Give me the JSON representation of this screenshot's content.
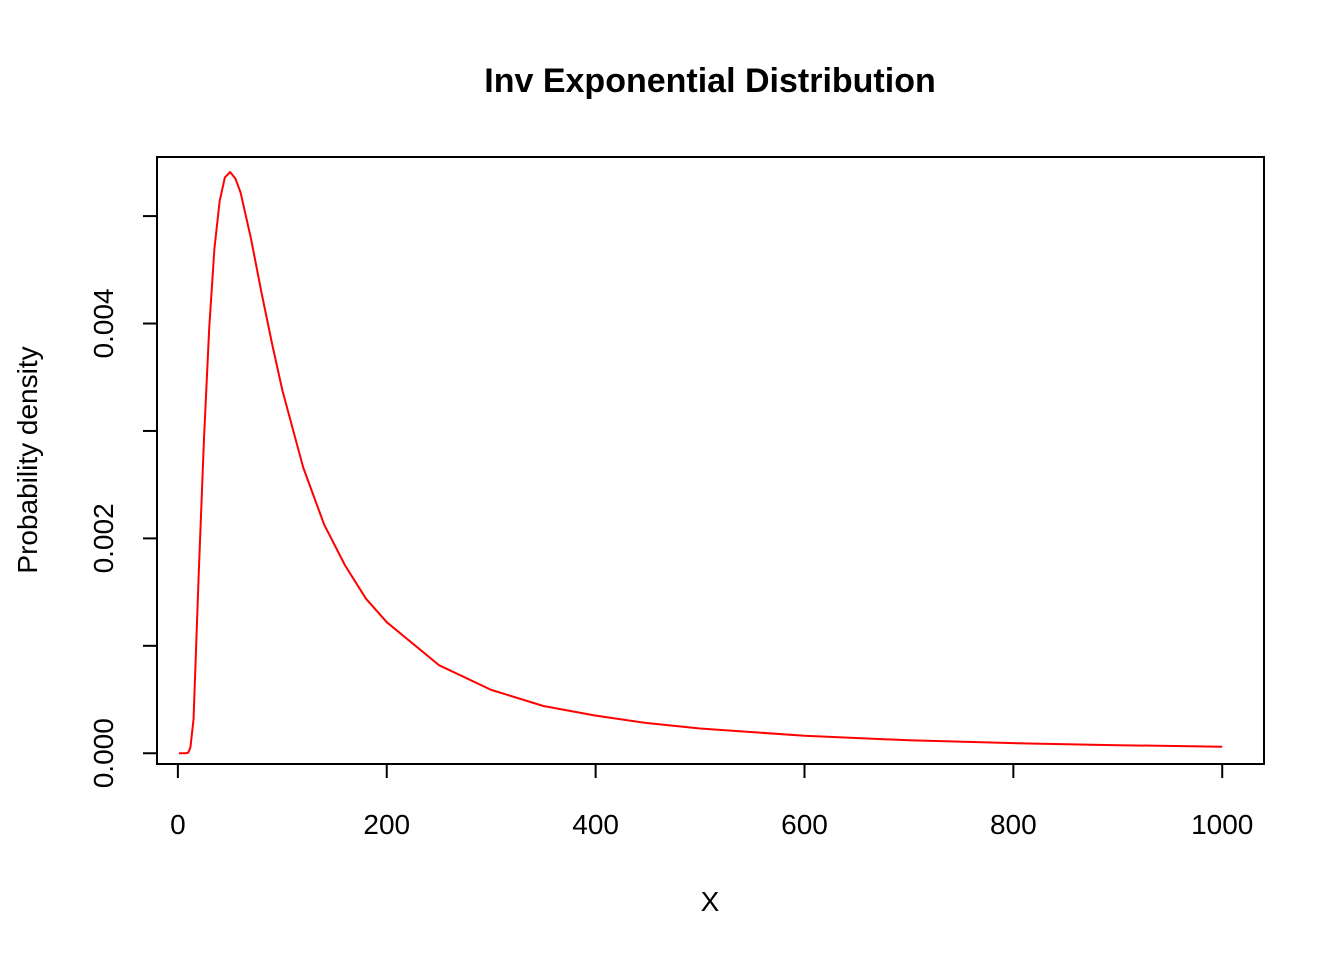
{
  "chart_data": {
    "type": "line",
    "title": "Inv Exponential Distribution",
    "xlabel": "X",
    "ylabel": "Probability density",
    "xlim": [
      -20,
      1040
    ],
    "ylim": [
      -0.0001,
      0.00555
    ],
    "x_ticks": [
      0,
      200,
      400,
      600,
      800,
      1000
    ],
    "x_tick_labels": [
      "0",
      "200",
      "400",
      "600",
      "800",
      "1000"
    ],
    "y_ticks": [
      0,
      0.001,
      0.002,
      0.003,
      0.004,
      0.005
    ],
    "y_tick_labels": [
      "0.000",
      "",
      "0.002",
      "",
      "0.004",
      ""
    ],
    "grid": false,
    "series": [
      {
        "color": "#ff0000",
        "x": [
          1,
          5,
          8,
          10,
          12,
          15,
          20,
          25,
          30,
          35,
          40,
          45,
          50,
          55,
          60,
          70,
          80,
          90,
          100,
          120,
          140,
          160,
          180,
          200,
          250,
          300,
          350,
          400,
          450,
          500,
          600,
          700,
          800,
          900,
          1000
        ],
        "y": [
          0.0,
          0.0,
          1.6e-07,
          7e-06,
          5.5e-05,
          0.000317,
          0.00168,
          0.00293,
          0.00396,
          0.0047,
          0.00514,
          0.00536,
          0.00541,
          0.00535,
          0.00522,
          0.00479,
          0.00429,
          0.00382,
          0.00338,
          0.00266,
          0.00213,
          0.00175,
          0.00144,
          0.00122,
          0.00082,
          0.00059,
          0.00044,
          0.00035,
          0.00028,
          0.00023,
          0.000163,
          0.000121,
          9.4e-05,
          7.5e-05,
          6.1e-05
        ]
      }
    ]
  }
}
